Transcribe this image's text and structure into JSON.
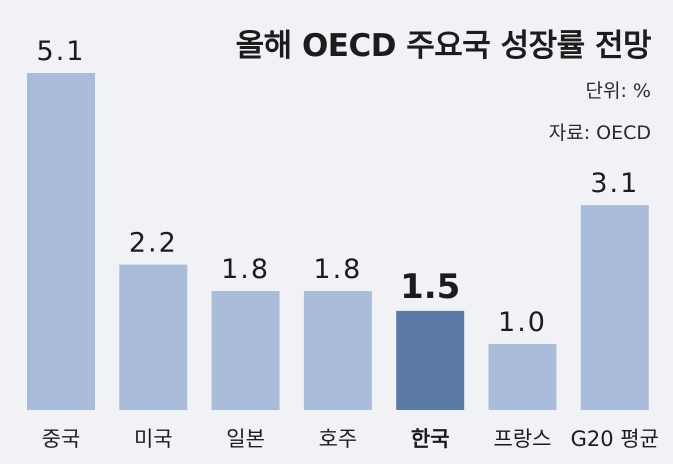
{
  "chart_data": {
    "type": "bar",
    "title": "올해 OECD 주요국 성장률 전망",
    "unit_label": "단위: %",
    "source_label": "자료: OECD",
    "categories": [
      "중국",
      "미국",
      "일본",
      "호주",
      "한국",
      "프랑스",
      "G20 평균"
    ],
    "values": [
      5.1,
      2.2,
      1.8,
      1.8,
      1.5,
      1.0,
      3.1
    ],
    "value_labels": [
      "5.1",
      "2.2",
      "1.8",
      "1.8",
      "1.5",
      "1.0",
      "3.1"
    ],
    "highlight_category": "한국",
    "xlabel": "",
    "ylabel": "",
    "ylim": [
      0,
      5.1
    ],
    "grid": false,
    "colors": {
      "bar": "#a9bcd9",
      "highlight_bar": "#5b7aa6",
      "background": "#f1f2f6",
      "text": "#1c1c1c"
    }
  }
}
